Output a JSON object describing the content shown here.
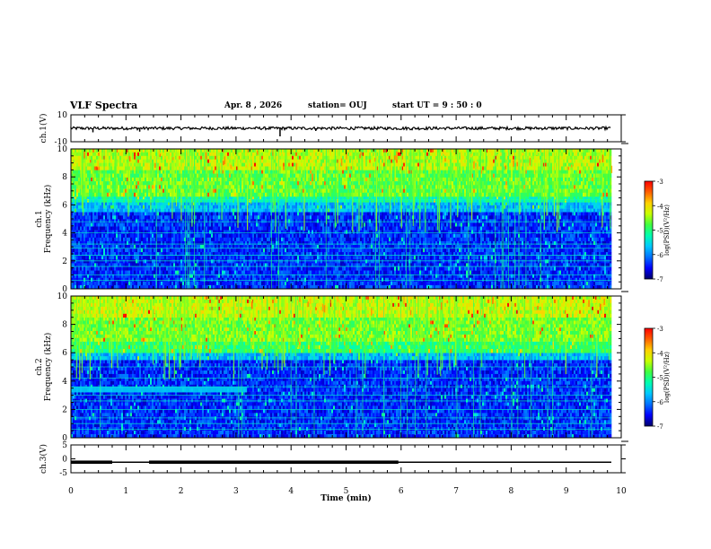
{
  "header": {
    "title": "VLF Spectra",
    "date": "Apr. 8 , 2026",
    "station": "station= OUJ",
    "start_ut": "start UT = 9 : 50 : 0"
  },
  "colors": {
    "colorbar": [
      "#00006a",
      "#0000ff",
      "#0070ff",
      "#00c8ff",
      "#00ffb0",
      "#40ff40",
      "#c8ff00",
      "#ffd000",
      "#ff6000",
      "#ff0000",
      "#ffffff"
    ],
    "trace": "#000000",
    "background": "#ffffff"
  },
  "chart_data": [
    {
      "id": "ch1_voltage",
      "type": "line",
      "ylabel": "ch.1(V)",
      "ylim": [
        -10,
        10
      ],
      "y_ticks": [
        "10",
        "-10"
      ],
      "baseline": 0,
      "spikes": [
        {
          "x": 0.4,
          "y": -3
        },
        {
          "x": 1.25,
          "y": -2.5
        },
        {
          "x": 3.8,
          "y": -6
        },
        {
          "x": 4.45,
          "y": -2
        },
        {
          "x": 6.2,
          "y": -1.5
        }
      ]
    },
    {
      "id": "ch1_spectrogram",
      "type": "heatmap",
      "ylabel": "ch.1 Frequency (kHz)",
      "ylim": [
        0,
        10
      ],
      "y_ticks": [
        "0",
        "2",
        "4",
        "6",
        "8",
        "10"
      ],
      "bands_khz": [
        {
          "from": 0,
          "to": 5.5,
          "level": 0.15
        },
        {
          "from": 5.5,
          "to": 6.2,
          "level": 0.32
        },
        {
          "from": 6.2,
          "to": 6.6,
          "level": 0.45
        },
        {
          "from": 6.6,
          "to": 8.5,
          "level": 0.58
        },
        {
          "from": 8.5,
          "to": 10,
          "level": 0.66
        }
      ],
      "horizontal_lines_khz": [
        0.6,
        1.0,
        1.6,
        2.0,
        2.4,
        2.9,
        3.2,
        4.0,
        4.8,
        6.3
      ],
      "colorbar": {
        "label": "log(PSD)(V²/Hz)",
        "ticks": [
          "-3",
          "-4",
          "-5",
          "-6",
          "-7"
        ],
        "range": [
          -7,
          -3
        ]
      }
    },
    {
      "id": "ch2_spectrogram",
      "type": "heatmap",
      "ylabel": "ch.2 Frequency (kHz)",
      "ylim": [
        0,
        10
      ],
      "y_ticks": [
        "0",
        "2",
        "4",
        "6",
        "8",
        "10"
      ],
      "bands_khz": [
        {
          "from": 0,
          "to": 5.5,
          "level": 0.15
        },
        {
          "from": 5.5,
          "to": 6.0,
          "level": 0.32
        },
        {
          "from": 6.0,
          "to": 6.8,
          "level": 0.52
        },
        {
          "from": 6.8,
          "to": 8.5,
          "level": 0.6
        },
        {
          "from": 8.5,
          "to": 10,
          "level": 0.68
        }
      ],
      "horizontal_lines_khz": [
        0.6,
        1.0,
        1.4,
        2.0,
        2.6,
        3.0,
        3.6,
        4.2,
        5.0
      ],
      "extra_band": {
        "from_min": 0,
        "to_min": 3.2,
        "from_khz": 3.2,
        "to_khz": 3.6,
        "level": 0.35
      },
      "colorbar": {
        "label": "log(PSD)(V²/Hz)",
        "ticks": [
          "-3",
          "-4",
          "-5",
          "-6",
          "-7"
        ],
        "range": [
          -7,
          -3
        ]
      }
    },
    {
      "id": "ch3_voltage",
      "type": "line",
      "ylabel": "ch.3(V)",
      "ylim": [
        -5,
        5
      ],
      "y_ticks": [
        "5",
        "0",
        "-5"
      ],
      "baseline": -1.2,
      "thick_segments_min": [
        [
          0,
          0.75
        ],
        [
          1.42,
          5.95
        ]
      ]
    }
  ],
  "x_axis": {
    "xlabel": "Time (min)",
    "xlim": [
      0,
      10
    ],
    "ticks": [
      "0",
      "1",
      "2",
      "3",
      "4",
      "5",
      "6",
      "7",
      "8",
      "9",
      "10"
    ],
    "data_end_min": 9.82
  }
}
